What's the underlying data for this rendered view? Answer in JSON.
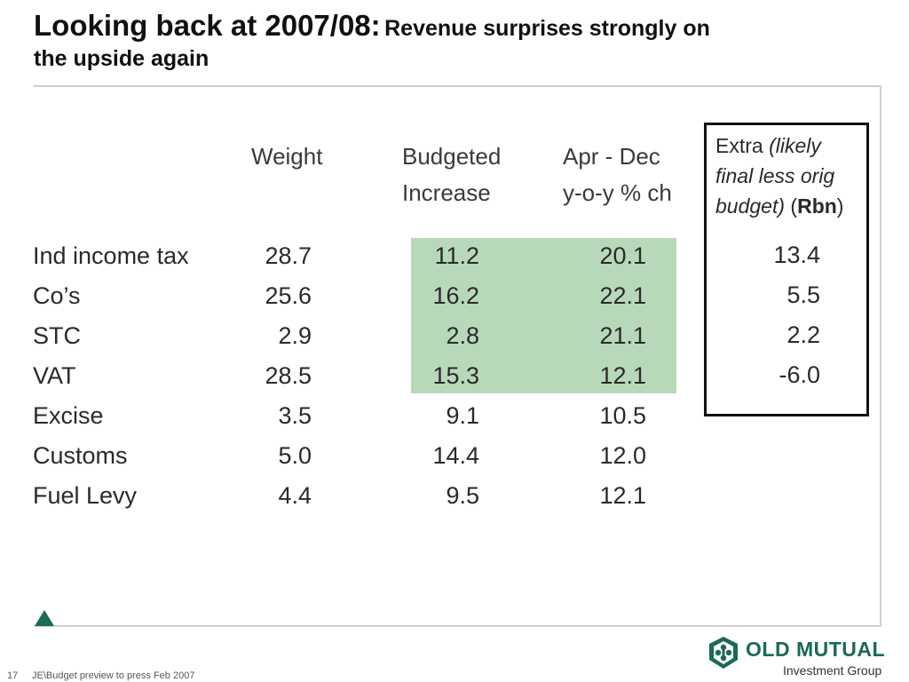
{
  "title": {
    "main": "Looking back at 2007/08:",
    "sub_line1": "Revenue surprises strongly on",
    "sub_line2": "the upside again"
  },
  "table": {
    "headers": {
      "weight": "Weight",
      "budgeted_line1": "Budgeted",
      "budgeted_line2": "Increase",
      "aprdec_line1": "Apr - Dec",
      "aprdec_line2": "y-o-y % ch"
    },
    "rows": [
      {
        "label": "Ind income tax",
        "weight": "28.7",
        "budgeted": "11.2",
        "aprdec": "20.1"
      },
      {
        "label": "Co’s",
        "weight": "25.6",
        "budgeted": "16.2",
        "aprdec": "22.1"
      },
      {
        "label": "STC",
        "weight": "2.9",
        "budgeted": "2.8",
        "aprdec": "21.1"
      },
      {
        "label": "VAT",
        "weight": "28.5",
        "budgeted": "15.3",
        "aprdec": "12.1"
      },
      {
        "label": "Excise",
        "weight": "3.5",
        "budgeted": "9.1",
        "aprdec": "10.5"
      },
      {
        "label": "Customs",
        "weight": "5.0",
        "budgeted": "14.4",
        "aprdec": "12.0"
      },
      {
        "label": "Fuel Levy",
        "weight": "4.4",
        "budgeted": "9.5",
        "aprdec": "12.1"
      }
    ],
    "highlight_color": "#b8d9b9"
  },
  "extra_box": {
    "label_extra": "Extra",
    "label_italic_1": "(likely",
    "label_italic_2": "final less orig",
    "label_italic_3": "budget)",
    "label_paren_open": "(",
    "label_unit": "Rbn",
    "label_paren_close": ")",
    "values": [
      "13.4",
      "5.5",
      "2.2",
      "-6.0"
    ]
  },
  "footer": {
    "page_number": "17",
    "text": "JE\\Budget preview to press Feb 2007"
  },
  "logo": {
    "name": "OLD MUTUAL",
    "subtitle": "Investment Group",
    "brand_color": "#1b6a55"
  }
}
